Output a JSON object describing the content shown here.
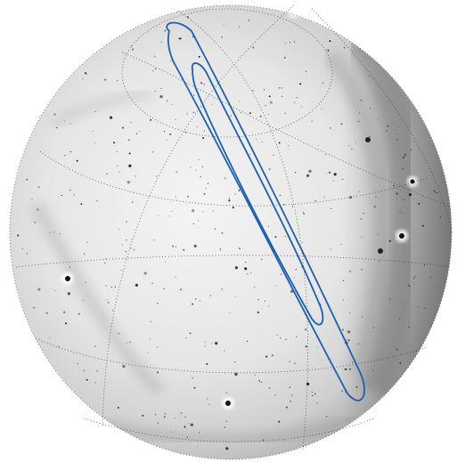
{
  "image": {
    "subject": "all-sky-view",
    "colors": {
      "background": "#ffffff",
      "sky_light": "#f2f2f2",
      "sky_mid": "#d6d6d6",
      "sky_dark": "#8e8e8e",
      "grid": "#333333",
      "contour": "#1f5fae",
      "star": "#111111"
    }
  }
}
